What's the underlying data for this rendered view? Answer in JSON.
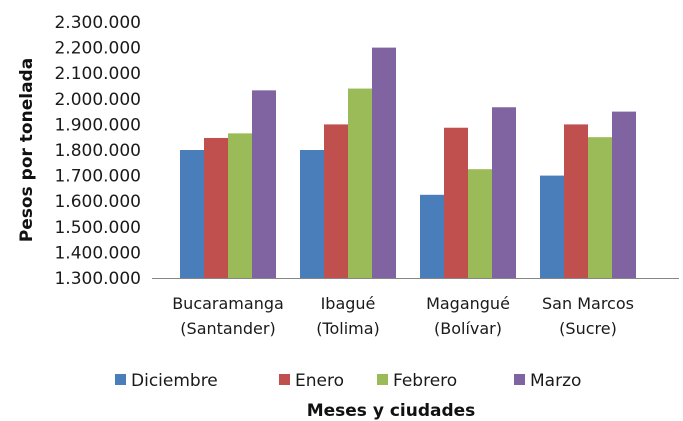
{
  "chart_data": {
    "type": "bar",
    "title": "",
    "xlabel": "Meses y ciudades",
    "ylabel": "Pesos por tonelada",
    "categories": [
      [
        "Bucaramanga",
        "(Santander)"
      ],
      [
        "Ibagué",
        "(Tolima)"
      ],
      [
        "Magangué",
        "(Bolívar)"
      ],
      [
        "San Marcos",
        "(Sucre)"
      ]
    ],
    "ylim": [
      1300000,
      2300000
    ],
    "yticks": [
      1300000,
      1400000,
      1500000,
      1600000,
      1700000,
      1800000,
      1900000,
      2000000,
      2100000,
      2200000,
      2300000
    ],
    "ytick_labels": [
      "1.300.000",
      "1.400.000",
      "1.500.000",
      "1.600.000",
      "1.700.000",
      "1.800.000",
      "1.900.000",
      "2.000.000",
      "2.100.000",
      "2.200.000",
      "2.300.000"
    ],
    "grid": false,
    "legend_position": "bottom",
    "series": [
      {
        "name": "Diciembre",
        "color": "#4a7ebb",
        "values": [
          1800000,
          1800000,
          1625000,
          1700000
        ]
      },
      {
        "name": "Enero",
        "color": "#c0504d",
        "values": [
          1847000,
          1900000,
          1887000,
          1900000
        ]
      },
      {
        "name": "Febrero",
        "color": "#9bbb59",
        "values": [
          1865000,
          2040000,
          1725000,
          1850000
        ]
      },
      {
        "name": "Marzo",
        "color": "#8064a2",
        "values": [
          2033000,
          2200000,
          1967000,
          1950000
        ]
      }
    ]
  }
}
